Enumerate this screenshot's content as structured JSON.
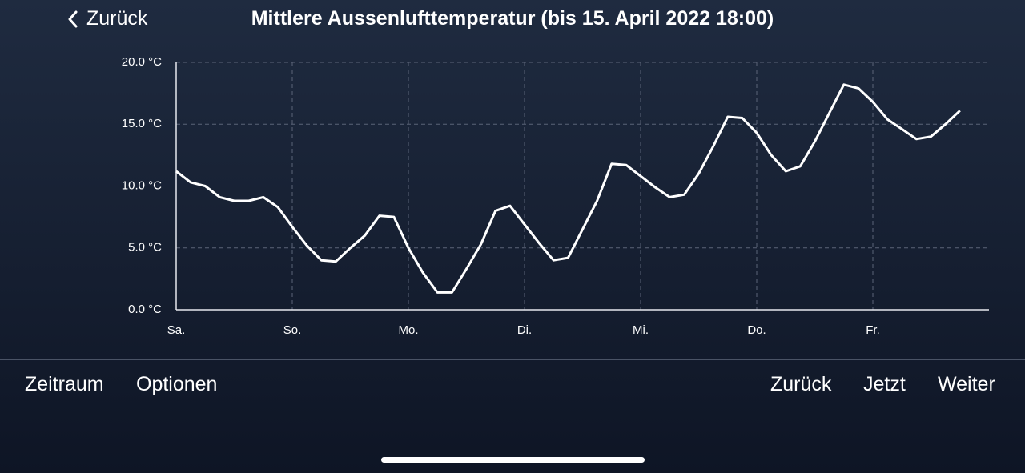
{
  "header": {
    "back": "Zurück"
  },
  "toolbar": {
    "left": [
      "Zeitraum",
      "Optionen"
    ],
    "right": [
      "Zurück",
      "Jetzt",
      "Weiter"
    ]
  },
  "chart_data": {
    "type": "line",
    "title": "Mittlere Aussenlufttemperatur (bis 15. April 2022 18:00)",
    "categories": [
      "Sa.",
      null,
      null,
      null,
      null,
      null,
      null,
      null,
      "So.",
      null,
      null,
      null,
      null,
      null,
      null,
      null,
      "Mo.",
      null,
      null,
      null,
      null,
      null,
      null,
      null,
      "Di.",
      null,
      null,
      null,
      null,
      null,
      null,
      null,
      "Mi.",
      null,
      null,
      null,
      null,
      null,
      null,
      null,
      "Do.",
      null,
      null,
      null,
      null,
      null,
      null,
      null,
      "Fr.",
      null,
      null,
      null,
      null,
      null,
      null,
      null,
      null
    ],
    "series": [
      {
        "name": "Mittlere Aussenlufttemperatur",
        "color": "#ffffff",
        "values": [
          11.2,
          10.3,
          10.0,
          9.1,
          8.8,
          8.8,
          9.1,
          8.3,
          6.7,
          5.2,
          4.0,
          3.9,
          5.0,
          6.0,
          7.6,
          7.5,
          5.0,
          3.0,
          1.4,
          1.4,
          3.3,
          5.3,
          8.0,
          8.4,
          6.9,
          5.4,
          4.0,
          4.2,
          6.5,
          8.8,
          11.8,
          11.7,
          10.8,
          9.9,
          9.1,
          9.3,
          11.0,
          13.2,
          15.6,
          15.5,
          14.3,
          12.5,
          11.2,
          11.6,
          13.6,
          15.9,
          18.2,
          17.9,
          16.8,
          15.4,
          14.6,
          13.8,
          14.0,
          15.0,
          16.1,
          null,
          null
        ]
      }
    ],
    "ylim": [
      0,
      20
    ],
    "yticks": [
      {
        "value": 0,
        "label": "0.0 °C"
      },
      {
        "value": 5,
        "label": "5.0 °C"
      },
      {
        "value": 10,
        "label": "10.0 °C"
      },
      {
        "value": 15,
        "label": "15.0 °C"
      },
      {
        "value": 20,
        "label": "20.0 °C"
      }
    ],
    "grid": true
  }
}
